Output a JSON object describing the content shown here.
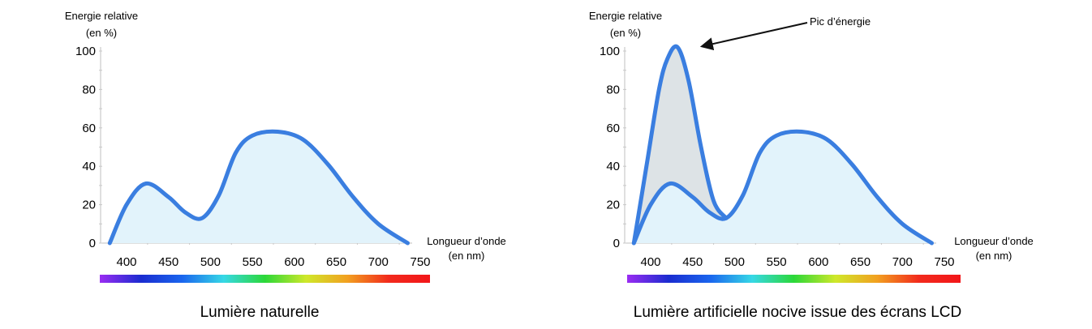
{
  "chart_data": [
    {
      "type": "area",
      "caption": "Lumière naturelle",
      "ylabel": [
        "Energie relative",
        "(en %)"
      ],
      "xlabel": [
        "Longueur d’onde",
        "(en nm)"
      ],
      "xlim": [
        400,
        750
      ],
      "ylim": [
        0,
        100
      ],
      "x_ticks": [
        "400",
        "450",
        "500",
        "550",
        "600",
        "650",
        "700",
        "750"
      ],
      "y_ticks": [
        "0",
        "20",
        "40",
        "60",
        "80",
        "100"
      ],
      "grid": false,
      "series": [
        {
          "x": [
            380,
            400,
            423,
            450,
            470,
            490,
            510,
            530,
            550,
            580,
            610,
            640,
            670,
            700,
            735
          ],
          "y": [
            0,
            20,
            31,
            24,
            16,
            13,
            25,
            47,
            56,
            58,
            54,
            41,
            24,
            10,
            0
          ],
          "color": "#3a7ee0",
          "fill": "#e2f3fb"
        }
      ],
      "spectrum_colors": [
        "#9a2cf2",
        "#1a2cd0",
        "#1a66ee",
        "#36d8e6",
        "#2bd838",
        "#cfe82a",
        "#f2a020",
        "#f22a1c",
        "#f2161a"
      ]
    },
    {
      "type": "area",
      "caption": "Lumière artificielle nocive issue des écrans LCD",
      "ylabel": [
        "Energie relative",
        "(en %)"
      ],
      "xlabel": [
        "Longueur d’onde",
        "(en nm)"
      ],
      "xlim": [
        400,
        750
      ],
      "ylim": [
        0,
        100
      ],
      "x_ticks": [
        "400",
        "450",
        "500",
        "550",
        "600",
        "650",
        "700",
        "750"
      ],
      "y_ticks": [
        "0",
        "20",
        "40",
        "60",
        "80",
        "100"
      ],
      "grid": false,
      "annotation": "Pic d’énergie",
      "series": [
        {
          "x": [
            380,
            400,
            423,
            450,
            470,
            490,
            510,
            530,
            550,
            580,
            610,
            640,
            670,
            700,
            735
          ],
          "y": [
            0,
            20,
            31,
            24,
            16,
            13,
            25,
            47,
            56,
            58,
            54,
            41,
            24,
            10,
            0
          ],
          "color": "#3a7ee0",
          "fill": "#e2f3fb"
        },
        {
          "x": [
            380,
            395,
            410,
            420,
            432,
            445,
            460,
            475,
            490
          ],
          "y": [
            0,
            40,
            80,
            96,
            102,
            85,
            50,
            22,
            13
          ],
          "color": "#3a7ee0",
          "fill": "#dde3e6"
        }
      ],
      "spectrum_colors": [
        "#9a2cf2",
        "#1a2cd0",
        "#1a66ee",
        "#36d8e6",
        "#2bd838",
        "#cfe82a",
        "#f2a020",
        "#f22a1c",
        "#f2161a"
      ]
    }
  ]
}
